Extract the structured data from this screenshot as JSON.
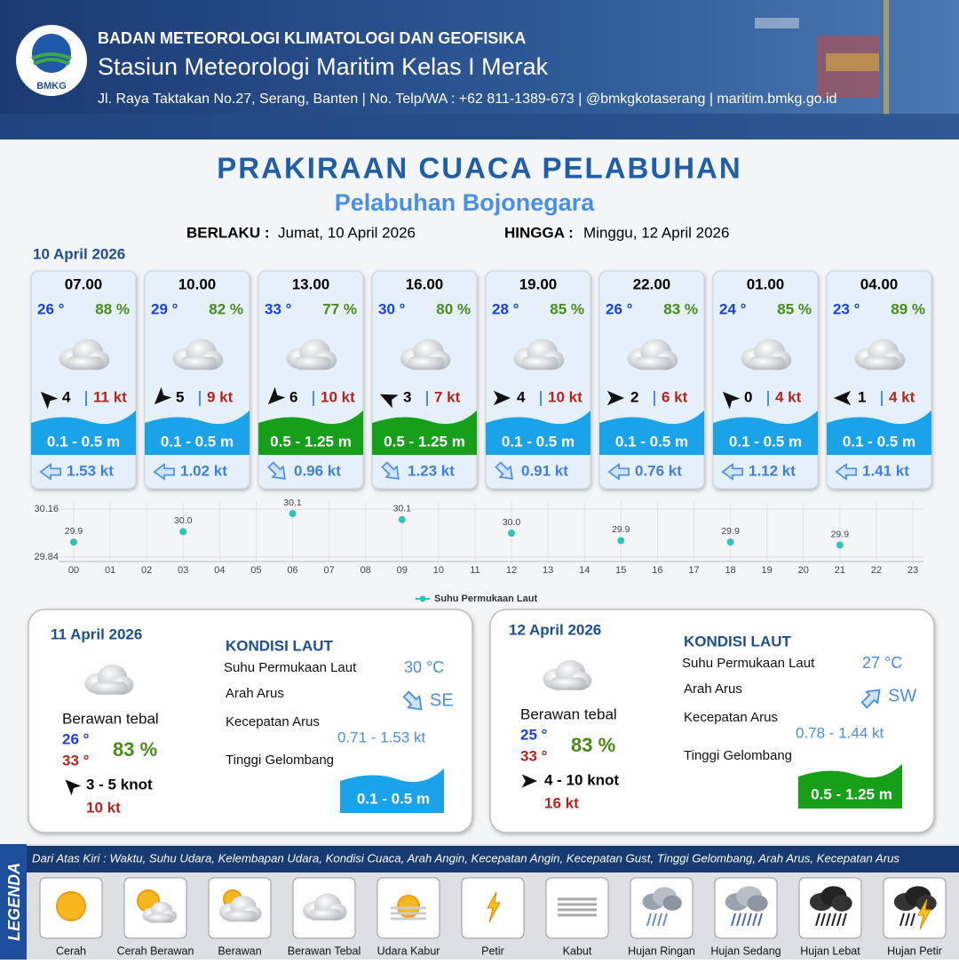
{
  "header": {
    "logo": "BMKG",
    "agency": "BADAN METEOROLOGI KLIMATOLOGI DAN GEOFISIKA",
    "station": "Stasiun Meteorologi Maritim Kelas I Merak",
    "address": "Jl. Raya Taktakan No.27, Serang, Banten | No. Telp/WA : +62 811-1389-673 | @bmkgkotaserang | maritim.bmkg.go.id"
  },
  "title": "PRAKIRAAN CUACA PELABUHAN",
  "subtitle": "Pelabuhan Bojonegara",
  "validity": {
    "from_label": "BERLAKU :",
    "from": "Jumat, 10 April 2026",
    "to_label": "HINGGA :",
    "to": "Minggu, 12 April 2026"
  },
  "today": {
    "date": "10 April 2026",
    "slots": [
      {
        "time": "07.00",
        "temp": "26 °",
        "humidity": "88 %",
        "wind_speed": 4,
        "gust": "11 kt",
        "wave": "0.1 - 0.5 m",
        "current": "1.53 kt"
      },
      {
        "time": "10.00",
        "temp": "29 °",
        "humidity": "82 %",
        "wind_speed": 5,
        "gust": "9 kt",
        "wave": "0.1 - 0.5 m",
        "current": "1.02 kt"
      },
      {
        "time": "13.00",
        "temp": "33 °",
        "humidity": "77 %",
        "wind_speed": 6,
        "gust": "10 kt",
        "wave": "0.5 - 1.25 m",
        "current": "0.96 kt"
      },
      {
        "time": "16.00",
        "temp": "30 °",
        "humidity": "80 %",
        "wind_speed": 3,
        "gust": "7 kt",
        "wave": "0.5 - 1.25 m",
        "current": "1.23 kt"
      },
      {
        "time": "19.00",
        "temp": "28 °",
        "humidity": "85 %",
        "wind_speed": 4,
        "gust": "10 kt",
        "wave": "0.1 - 0.5 m",
        "current": "0.91 kt"
      },
      {
        "time": "22.00",
        "temp": "26 °",
        "humidity": "83 %",
        "wind_speed": 2,
        "gust": "6 kt",
        "wave": "0.1 - 0.5 m",
        "current": "0.76 kt"
      },
      {
        "time": "01.00",
        "temp": "24 °",
        "humidity": "85 %",
        "wind_speed": 0,
        "gust": "4 kt",
        "wave": "0.1 - 0.5 m",
        "current": "1.12 kt"
      },
      {
        "time": "04.00",
        "temp": "23 °",
        "humidity": "89 %",
        "wind_speed": 1,
        "gust": "4 kt",
        "wave": "0.1 - 0.5 m",
        "current": "1.41 kt"
      }
    ]
  },
  "chart_data": {
    "type": "scatter",
    "x": [
      0,
      3,
      6,
      9,
      12,
      15,
      18,
      21
    ],
    "series": [
      {
        "name": "Suhu Permukaan Laut",
        "color": "#2ec4b6",
        "values": [
          29.94,
          30.01,
          30.13,
          30.09,
          30.0,
          29.95,
          29.94,
          29.92
        ],
        "value_labels": [
          "29.9",
          "30.0",
          "30.1",
          "30.1",
          "30.0",
          "29.9",
          "29.9",
          "29.9"
        ]
      }
    ],
    "xlim": [
      0,
      23
    ],
    "xticks": [
      {
        "value": 0,
        "label": "00"
      },
      {
        "value": 1,
        "label": "01"
      },
      {
        "value": 2,
        "label": "02"
      },
      {
        "value": 3,
        "label": "03"
      },
      {
        "value": 4,
        "label": "04"
      },
      {
        "value": 5,
        "label": "05"
      },
      {
        "value": 6,
        "label": "06"
      },
      {
        "value": 7,
        "label": "07"
      },
      {
        "value": 8,
        "label": "08"
      },
      {
        "value": 9,
        "label": "09"
      },
      10,
      11,
      12,
      13,
      14,
      15,
      16,
      17,
      18,
      19,
      20,
      21,
      22,
      23
    ],
    "ylim": [
      29.84,
      30.16
    ],
    "yticks": [
      29.84,
      30.16
    ],
    "grid": true,
    "legend": "bottom"
  },
  "days": [
    {
      "date": "11 April 2026",
      "condition": "Berawan tebal",
      "temp_min": "26 °",
      "temp_max": "33 °",
      "humidity": "83 %",
      "wind": "3  - 5 knot",
      "gust": "10 kt",
      "sea": {
        "heading": "KONDISI LAUT",
        "sst_label": "Suhu Permukaan Laut",
        "sst": "30 °C",
        "current_dir_label": "Arah Arus",
        "current_dir": "SE",
        "current_speed_label": "Kecepatan Arus",
        "current_speed": "0.71 - 1.53 kt",
        "wave_label": "Tinggi Gelombang",
        "wave": "0.1 - 0.5 m"
      }
    },
    {
      "date": "12 April 2026",
      "condition": "Berawan tebal",
      "temp_min": "25 °",
      "temp_max": "33 °",
      "humidity": "83 %",
      "wind": "4  - 10 knot",
      "gust": "16 kt",
      "sea": {
        "heading": "KONDISI LAUT",
        "sst_label": "Suhu Permukaan Laut",
        "sst": "27 °C",
        "current_dir_label": "Arah Arus",
        "current_dir": "SW",
        "current_speed_label": "Kecepatan Arus",
        "current_speed": "0.78 - 1.44 kt",
        "wave_label": "Tinggi Gelombang",
        "wave": "0.5 - 1.25 m"
      }
    }
  ],
  "legend": {
    "heading": "LEGENDA",
    "description": "Dari Atas Kiri : Waktu, Suhu Udara, Kelembapan Udara, Kondisi Cuaca, Arah Angin, Kecepatan Angin, Kecepatan Gust, Tinggi Gelombang, Arah Arus, Kecepatan Arus",
    "items": [
      "Cerah",
      "Cerah Berawan",
      "Berawan",
      "Berawan Tebal",
      "Udara Kabur",
      "Petir",
      "Kabut",
      "Hujan Ringan",
      "Hujan Sedang",
      "Hujan Lebat",
      "Hujan Petir"
    ]
  }
}
